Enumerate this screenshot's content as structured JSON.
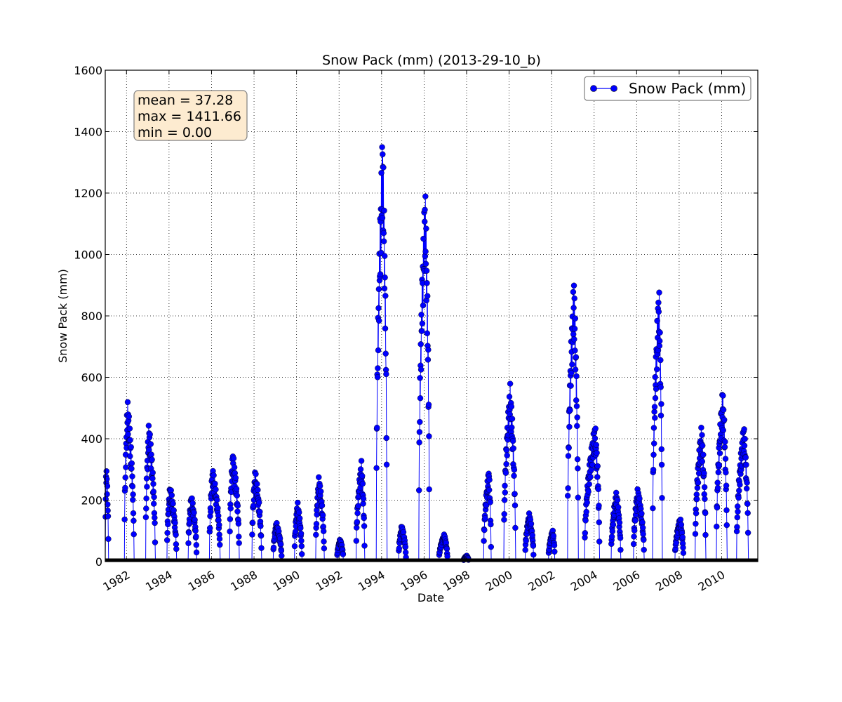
{
  "chart_data": {
    "type": "line",
    "title": "Snow Pack (mm) (2013-29-10_b)",
    "xlabel": "Date",
    "ylabel": "Snow Pack (mm)",
    "xlim": [
      1981.0,
      2011.7
    ],
    "ylim": [
      0,
      1600
    ],
    "x_ticks": [
      "1982",
      "1984",
      "1986",
      "1988",
      "1990",
      "1992",
      "1994",
      "1996",
      "1998",
      "2000",
      "2002",
      "2004",
      "2006",
      "2008",
      "2010"
    ],
    "y_ticks": [
      0,
      200,
      400,
      600,
      800,
      1000,
      1200,
      1400,
      1600
    ],
    "grid": true,
    "legend": {
      "position": "top-right",
      "entries": [
        "Snow Pack (mm)"
      ]
    },
    "series_color": "#0000ff",
    "stats_box": {
      "lines": [
        "mean = 37.28",
        "max = 1411.66",
        "min = 0.00"
      ],
      "background": "#fdebd0",
      "position": "top-left"
    },
    "series": [
      {
        "name": "Snow Pack (mm)",
        "peaks": [
          {
            "start": 1981.0,
            "end": 1981.15,
            "peak": 1981.05,
            "max": 325
          },
          {
            "start": 1981.9,
            "end": 1982.35,
            "peak": 1982.05,
            "max": 530
          },
          {
            "start": 1982.9,
            "end": 1983.35,
            "peak": 1983.05,
            "max": 455
          },
          {
            "start": 1983.9,
            "end": 1984.35,
            "peak": 1984.05,
            "max": 250
          },
          {
            "start": 1984.9,
            "end": 1985.3,
            "peak": 1985.05,
            "max": 220
          },
          {
            "start": 1985.9,
            "end": 1986.4,
            "peak": 1986.05,
            "max": 305
          },
          {
            "start": 1986.85,
            "end": 1987.3,
            "peak": 1987.0,
            "max": 360
          },
          {
            "start": 1987.9,
            "end": 1988.35,
            "peak": 1988.05,
            "max": 300
          },
          {
            "start": 1988.9,
            "end": 1989.3,
            "peak": 1989.05,
            "max": 130
          },
          {
            "start": 1989.9,
            "end": 1990.25,
            "peak": 1990.05,
            "max": 195
          },
          {
            "start": 1990.9,
            "end": 1991.3,
            "peak": 1991.05,
            "max": 280
          },
          {
            "start": 1991.9,
            "end": 1992.2,
            "peak": 1992.05,
            "max": 75
          },
          {
            "start": 1992.8,
            "end": 1993.2,
            "peak": 1993.05,
            "max": 330
          },
          {
            "start": 1993.75,
            "end": 1994.25,
            "peak": 1994.05,
            "max": 1411.66
          },
          {
            "start": 1994.8,
            "end": 1995.15,
            "peak": 1994.95,
            "max": 120
          },
          {
            "start": 1995.75,
            "end": 1996.25,
            "peak": 1996.05,
            "max": 1235
          },
          {
            "start": 1996.7,
            "end": 1997.1,
            "peak": 1996.95,
            "max": 90
          },
          {
            "start": 1997.85,
            "end": 1998.1,
            "peak": 1998.0,
            "max": 20
          },
          {
            "start": 1998.8,
            "end": 1999.15,
            "peak": 1999.05,
            "max": 305
          },
          {
            "start": 1999.75,
            "end": 2000.3,
            "peak": 2000.05,
            "max": 580
          },
          {
            "start": 2000.75,
            "end": 2001.15,
            "peak": 2000.95,
            "max": 160
          },
          {
            "start": 2001.85,
            "end": 2002.15,
            "peak": 2002.05,
            "max": 105
          },
          {
            "start": 2002.75,
            "end": 2003.25,
            "peak": 2003.05,
            "max": 930
          },
          {
            "start": 2003.55,
            "end": 2004.25,
            "peak": 2004.05,
            "max": 450
          },
          {
            "start": 2004.8,
            "end": 2005.25,
            "peak": 2005.05,
            "max": 230
          },
          {
            "start": 2005.85,
            "end": 2006.35,
            "peak": 2006.05,
            "max": 240
          },
          {
            "start": 2006.75,
            "end": 2007.2,
            "peak": 2007.05,
            "max": 910
          },
          {
            "start": 2007.8,
            "end": 2008.2,
            "peak": 2008.05,
            "max": 145
          },
          {
            "start": 2008.75,
            "end": 2009.25,
            "peak": 2009.05,
            "max": 445
          },
          {
            "start": 2009.75,
            "end": 2010.25,
            "peak": 2010.05,
            "max": 565
          },
          {
            "start": 2010.7,
            "end": 2011.25,
            "peak": 2011.05,
            "max": 450
          }
        ]
      }
    ]
  }
}
